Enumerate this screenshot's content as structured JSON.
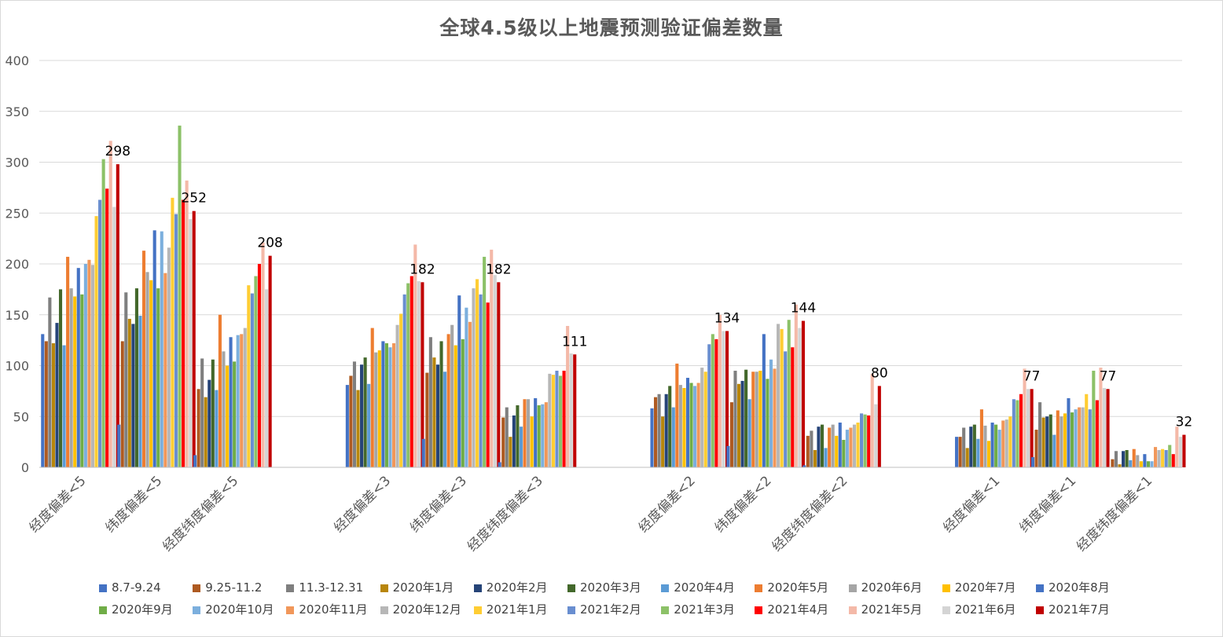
{
  "chart_data": {
    "type": "bar",
    "title": "全球4.5级以上地震预测验证偏差数量",
    "ylim": [
      0,
      400
    ],
    "yticks": [
      0,
      50,
      100,
      150,
      200,
      250,
      300,
      350,
      400
    ],
    "grid": true,
    "legend_position": "bottom",
    "categories": [
      "经度偏差<5",
      "纬度偏差<5",
      "经度纬度偏差<5",
      "经度偏差<3",
      "纬度偏差<3",
      "经度纬度偏差<3",
      "经度偏差<2",
      "纬度偏差<2",
      "经度纬度偏差<2",
      "经度偏差<1",
      "纬度偏差<1",
      "经度纬度偏差<1"
    ],
    "data_labels": [
      "298",
      "252",
      "208",
      "182",
      "182",
      "111",
      "134",
      "144",
      "80",
      "77",
      "77",
      "32"
    ],
    "series": [
      {
        "name": "8.7-9.24",
        "color": "#4472c4",
        "values": [
          131,
          42,
          12,
          81,
          28,
          5,
          58,
          21,
          2,
          30,
          10,
          0
        ]
      },
      {
        "name": "9.25-11.2",
        "color": "#ae5a21",
        "values": [
          124,
          124,
          77,
          90,
          93,
          49,
          69,
          64,
          31,
          30,
          37,
          8
        ]
      },
      {
        "name": "11.3-12.31",
        "color": "#7f7f7f",
        "values": [
          167,
          172,
          107,
          104,
          128,
          59,
          72,
          95,
          36,
          39,
          64,
          16
        ]
      },
      {
        "name": "2020年1月",
        "color": "#b8860b",
        "values": [
          122,
          146,
          69,
          76,
          108,
          30,
          50,
          82,
          17,
          19,
          49,
          3
        ]
      },
      {
        "name": "2020年2月",
        "color": "#264478",
        "values": [
          142,
          141,
          86,
          101,
          101,
          51,
          72,
          85,
          40,
          40,
          50,
          16
        ]
      },
      {
        "name": "2020年3月",
        "color": "#43682b",
        "values": [
          175,
          176,
          106,
          108,
          124,
          61,
          80,
          96,
          42,
          42,
          52,
          17
        ]
      },
      {
        "name": "2020年4月",
        "color": "#5b9bd5",
        "values": [
          120,
          149,
          76,
          82,
          94,
          40,
          59,
          67,
          19,
          28,
          32,
          7
        ]
      },
      {
        "name": "2020年5月",
        "color": "#ed7d31",
        "values": [
          207,
          213,
          150,
          137,
          131,
          67,
          102,
          94,
          39,
          57,
          56,
          18
        ]
      },
      {
        "name": "2020年6月",
        "color": "#a5a5a5",
        "values": [
          176,
          192,
          114,
          113,
          140,
          67,
          81,
          94,
          42,
          41,
          50,
          12
        ]
      },
      {
        "name": "2020年7月",
        "color": "#ffc000",
        "values": [
          168,
          184,
          100,
          115,
          120,
          50,
          78,
          95,
          31,
          26,
          53,
          6
        ]
      },
      {
        "name": "2020年8月",
        "color": "#4472c4",
        "values": [
          196,
          233,
          128,
          124,
          169,
          68,
          88,
          131,
          44,
          44,
          68,
          13
        ]
      },
      {
        "name": "2020年9月",
        "color": "#70ad47",
        "values": [
          170,
          176,
          104,
          122,
          126,
          61,
          83,
          87,
          27,
          42,
          54,
          6
        ]
      },
      {
        "name": "2020年10月",
        "color": "#7cafdd",
        "values": [
          200,
          232,
          130,
          118,
          157,
          62,
          80,
          106,
          37,
          37,
          57,
          6
        ]
      },
      {
        "name": "2020年11月",
        "color": "#f1975a",
        "values": [
          204,
          191,
          131,
          122,
          143,
          64,
          83,
          97,
          39,
          46,
          59,
          20
        ]
      },
      {
        "name": "2020年12月",
        "color": "#b7b7b7",
        "values": [
          199,
          216,
          137,
          140,
          176,
          92,
          98,
          141,
          42,
          47,
          59,
          17
        ]
      },
      {
        "name": "2021年1月",
        "color": "#ffcd33",
        "values": [
          247,
          265,
          179,
          151,
          185,
          91,
          94,
          136,
          44,
          50,
          72,
          18
        ]
      },
      {
        "name": "2021年2月",
        "color": "#698ed0",
        "values": [
          263,
          249,
          171,
          170,
          170,
          95,
          121,
          114,
          53,
          67,
          57,
          17
        ]
      },
      {
        "name": "2021年3月",
        "color": "#8cc168",
        "values": [
          303,
          336,
          188,
          181,
          207,
          90,
          131,
          145,
          52,
          66,
          95,
          22
        ]
      },
      {
        "name": "2021年4月",
        "color": "#ff0000",
        "values": [
          274,
          263,
          200,
          188,
          162,
          95,
          126,
          118,
          51,
          72,
          66,
          13
        ]
      },
      {
        "name": "2021年5月",
        "color": "#f4b9a8",
        "values": [
          321,
          282,
          221,
          219,
          214,
          139,
          150,
          160,
          92,
          97,
          98,
          40
        ]
      },
      {
        "name": "2021年6月",
        "color": "#d4d4d4",
        "values": [
          256,
          244,
          175,
          183,
          189,
          112,
          134,
          137,
          62,
          77,
          78,
          30
        ]
      },
      {
        "name": "2021年7月",
        "color": "#c00000",
        "values": [
          298,
          252,
          208,
          182,
          182,
          111,
          134,
          144,
          80,
          77,
          77,
          32
        ]
      }
    ]
  }
}
